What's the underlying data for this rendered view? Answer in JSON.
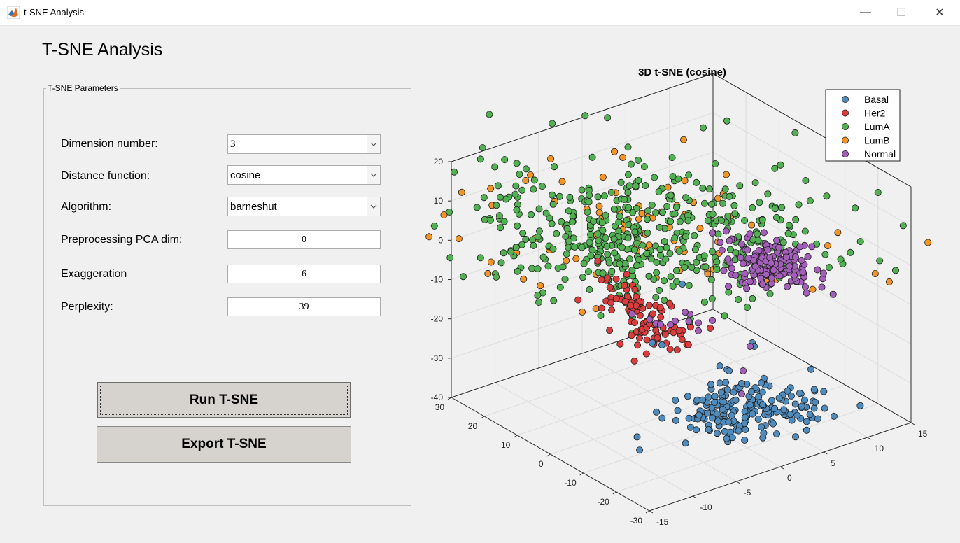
{
  "window": {
    "title": "t-SNE Analysis",
    "minimize": "—",
    "maximize": "☐",
    "close": "✕"
  },
  "page_title": "T-SNE Analysis",
  "panel": {
    "title": "T-SNE Parameters",
    "dimension": {
      "label": "Dimension number:",
      "value": "3"
    },
    "distance": {
      "label": "Distance function:",
      "value": "cosine"
    },
    "algorithm": {
      "label": "Algorithm:",
      "value": "barneshut"
    },
    "pca": {
      "label": "Preprocessing PCA dim:",
      "value": "0"
    },
    "exaggeration": {
      "label": "Exaggeration",
      "value": "6"
    },
    "perplexity": {
      "label": "Perplexity:",
      "value": "39"
    }
  },
  "buttons": {
    "run": "Run T-SNE",
    "export": "Export T-SNE"
  },
  "chart_data": {
    "type": "scatter",
    "title": "3D t-SNE (cosine)",
    "legend_position": "top-right",
    "grid": true,
    "xlim": [
      -30,
      30
    ],
    "ylim": [
      -15,
      15
    ],
    "zlim": [
      -40,
      20
    ],
    "x_ticks": [
      "30",
      "20",
      "10",
      "0",
      "-10",
      "-20",
      "-30"
    ],
    "y_ticks": [
      "-15",
      "-10",
      "-5",
      "0",
      "5",
      "10",
      "15"
    ],
    "z_ticks": [
      "20",
      "10",
      "0",
      "-10",
      "-20",
      "-30",
      "-40"
    ],
    "series": [
      {
        "name": "Basal",
        "color": "#4f8bbd",
        "x": [],
        "y": [],
        "z": []
      },
      {
        "name": "Her2",
        "color": "#dc3c3c",
        "x": [],
        "y": [],
        "z": []
      },
      {
        "name": "LumA",
        "color": "#52b152",
        "x": [],
        "y": [],
        "z": []
      },
      {
        "name": "LumB",
        "color": "#f39427",
        "x": [],
        "y": [],
        "z": []
      },
      {
        "name": "Normal",
        "color": "#a35fb9",
        "x": [],
        "y": [],
        "z": []
      }
    ]
  }
}
